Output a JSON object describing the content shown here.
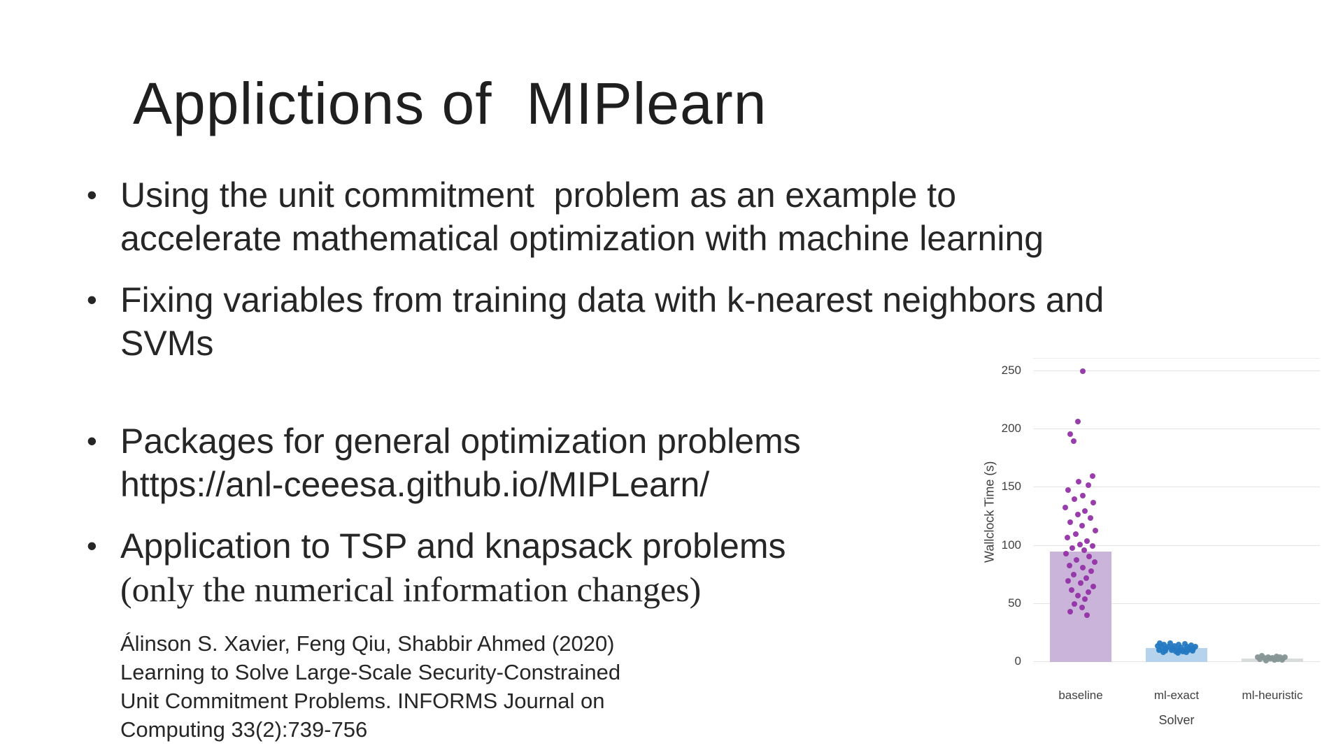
{
  "slide": {
    "title": "Applictions of  MIPlearn",
    "bullets": [
      {
        "lines": [
          "Using the unit commitment  problem as an example to",
          "accelerate mathematical optimization with machine learning"
        ]
      },
      {
        "lines": [
          "Fixing variables from training data with k-nearest neighbors and",
          "SVMs"
        ]
      },
      {
        "lines": [
          "Packages for general optimization problems",
          "https://anl-ceeesa.github.io/MIPLearn/"
        ]
      },
      {
        "lines": [
          "Application to TSP and knapsack problems",
          "(only the numerical information changes)"
        ]
      }
    ],
    "citation": [
      "Álinson S. Xavier, Feng Qiu, Shabbir Ahmed (2020)",
      "Learning to Solve Large-Scale Security-Constrained",
      "Unit Commitment Problems. INFORMS Journal on",
      "Computing 33(2):739-756"
    ]
  },
  "chart_data": {
    "type": "bar",
    "subtype": "bar with strip-plot overlay",
    "title": "",
    "xlabel": "Solver",
    "ylabel": "Wallclock Time (s)",
    "categories": [
      "baseline",
      "ml-exact",
      "ml-heuristic"
    ],
    "bar_values": [
      95,
      12,
      3
    ],
    "yticks": [
      0,
      50,
      100,
      150,
      200,
      250
    ],
    "ylim": [
      0,
      262
    ],
    "grid": "horizontal",
    "legend": "none",
    "colors": {
      "bars": [
        "#cbb4d9",
        "#b5d3ec",
        "#d8dcdc"
      ],
      "points": [
        "#9332a8",
        "#2479c2",
        "#869693"
      ],
      "grid": "#e3e3e3",
      "axis_text": "#3f3f3f"
    },
    "points": {
      "baseline": [
        [
          250,
          0.1
        ],
        [
          207,
          -0.15
        ],
        [
          196,
          -0.5
        ],
        [
          190,
          -0.35
        ],
        [
          160,
          0.55
        ],
        [
          155,
          -0.1
        ],
        [
          152,
          0.35
        ],
        [
          148,
          -0.6
        ],
        [
          143,
          0.1
        ],
        [
          140,
          -0.3
        ],
        [
          137,
          0.6
        ],
        [
          133,
          -0.75
        ],
        [
          130,
          0.2
        ],
        [
          127,
          -0.15
        ],
        [
          124,
          0.45
        ],
        [
          120,
          -0.5
        ],
        [
          117,
          0.05
        ],
        [
          113,
          0.7
        ],
        [
          110,
          -0.25
        ],
        [
          107,
          -0.65
        ],
        [
          104,
          0.3
        ],
        [
          101,
          -0.05
        ],
        [
          100,
          0.55
        ],
        [
          98,
          -0.4
        ],
        [
          96,
          0.15
        ],
        [
          93,
          -0.7
        ],
        [
          91,
          0.4
        ],
        [
          88,
          -0.2
        ],
        [
          86,
          0.65
        ],
        [
          83,
          -0.55
        ],
        [
          81,
          0.1
        ],
        [
          78,
          0.5
        ],
        [
          75,
          -0.35
        ],
        [
          72,
          0.25
        ],
        [
          70,
          -0.6
        ],
        [
          68,
          0.0
        ],
        [
          65,
          0.6
        ],
        [
          62,
          -0.45
        ],
        [
          60,
          0.35
        ],
        [
          57,
          -0.15
        ],
        [
          54,
          0.2
        ],
        [
          50,
          -0.3
        ],
        [
          47,
          0.05
        ],
        [
          43,
          -0.5
        ],
        [
          40,
          0.3
        ]
      ],
      "ml-exact": [
        [
          16.5,
          -0.8
        ],
        [
          16,
          -0.3
        ],
        [
          15.5,
          0.4
        ],
        [
          15,
          -0.6
        ],
        [
          15,
          0.1
        ],
        [
          14.5,
          0.7
        ],
        [
          14,
          -0.9
        ],
        [
          14,
          -0.1
        ],
        [
          13.5,
          0.5
        ],
        [
          13,
          -0.4
        ],
        [
          13,
          0.9
        ],
        [
          12.5,
          0.2
        ],
        [
          12.5,
          -0.7
        ],
        [
          12,
          0.6
        ],
        [
          12,
          -0.2
        ],
        [
          11.5,
          0.8
        ],
        [
          11.5,
          -0.5
        ],
        [
          11,
          0.0
        ],
        [
          11,
          0.35
        ],
        [
          10.5,
          -0.85
        ],
        [
          10.5,
          0.55
        ],
        [
          10,
          -0.25
        ],
        [
          10,
          0.15
        ],
        [
          9.5,
          0.75
        ],
        [
          9.5,
          -0.55
        ],
        [
          9,
          0.3
        ],
        [
          9,
          -0.05
        ],
        [
          8.5,
          -0.65
        ],
        [
          8.5,
          0.45
        ],
        [
          8,
          0.05
        ]
      ],
      "ml-heuristic": [
        [
          5.5,
          -0.5
        ],
        [
          5,
          0.2
        ],
        [
          4.5,
          -0.2
        ],
        [
          4.5,
          0.6
        ],
        [
          4,
          -0.7
        ],
        [
          4,
          0.35
        ],
        [
          3.5,
          0.0
        ],
        [
          3.5,
          -0.4
        ],
        [
          3,
          0.5
        ],
        [
          3,
          -0.1
        ],
        [
          2.5,
          0.25
        ],
        [
          2.5,
          -0.6
        ],
        [
          2,
          0.1
        ],
        [
          2,
          0.45
        ],
        [
          1.5,
          -0.3
        ]
      ]
    }
  }
}
